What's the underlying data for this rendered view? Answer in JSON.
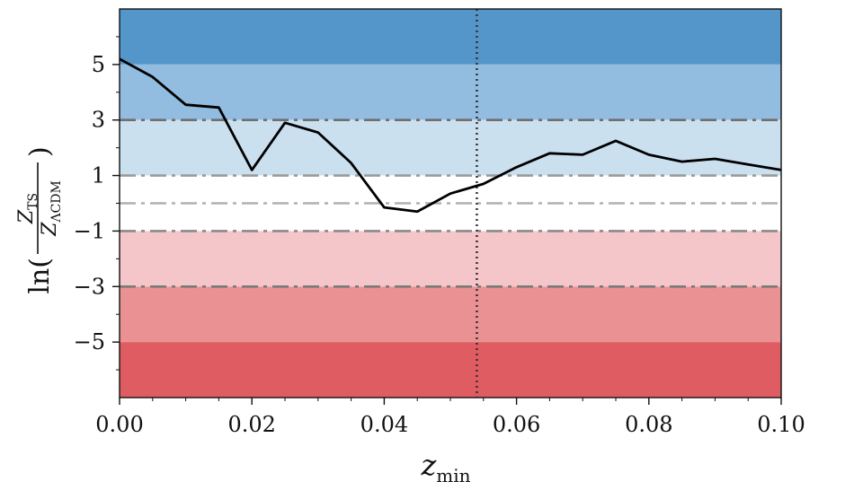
{
  "chart_data": {
    "type": "line",
    "xlabel": {
      "main": "z",
      "sub": "min"
    },
    "ylabel": {
      "prefix": "ln(",
      "num_main": "Z",
      "num_sub": "TS",
      "den_main": "Z",
      "den_sub": "ΛCDM",
      "suffix": ")"
    },
    "xlim": [
      0.0,
      0.1
    ],
    "ylim": [
      -7,
      7
    ],
    "xticks": [
      0.0,
      0.02,
      0.04,
      0.06,
      0.08,
      0.1
    ],
    "xtick_labels": [
      "0.00",
      "0.02",
      "0.04",
      "0.06",
      "0.08",
      "0.10"
    ],
    "yticks": [
      5,
      3,
      1,
      -1,
      -3,
      -5
    ],
    "ytick_labels": [
      "5",
      "3",
      "1",
      "−1",
      "−3",
      "−5"
    ],
    "bands": [
      {
        "from": 5,
        "to": 7,
        "color": "#5496c9"
      },
      {
        "from": 3,
        "to": 5,
        "color": "#92bde0"
      },
      {
        "from": 1,
        "to": 3,
        "color": "#cbe0ef"
      },
      {
        "from": -1,
        "to": 1,
        "color": "#ffffff"
      },
      {
        "from": -3,
        "to": -1,
        "color": "#f4c5c9"
      },
      {
        "from": -5,
        "to": -3,
        "color": "#ea9293"
      },
      {
        "from": -7,
        "to": -5,
        "color": "#e05c63"
      }
    ],
    "reference_lines": [
      {
        "y": 3,
        "style": "dashdot",
        "color": "#6f6f6f"
      },
      {
        "y": 1,
        "style": "dashdot",
        "color": "#9a9a9a"
      },
      {
        "y": 0,
        "style": "dashdot",
        "color": "#b0b0b0"
      },
      {
        "y": -1,
        "style": "dashdot",
        "color": "#8a8a8a"
      },
      {
        "y": -3,
        "style": "dashdot",
        "color": "#7a7a7a"
      }
    ],
    "vline": {
      "x": 0.054,
      "style": "dotted",
      "color": "#333333"
    },
    "series": [
      {
        "color": "#000000",
        "x": [
          0.0,
          0.005,
          0.01,
          0.015,
          0.02,
          0.025,
          0.03,
          0.035,
          0.04,
          0.045,
          0.05,
          0.055,
          0.06,
          0.065,
          0.07,
          0.075,
          0.08,
          0.085,
          0.09,
          0.095,
          0.1
        ],
        "y": [
          5.2,
          4.55,
          3.55,
          3.45,
          1.2,
          2.9,
          2.55,
          1.45,
          -0.15,
          -0.3,
          0.35,
          0.7,
          1.3,
          1.8,
          1.75,
          2.25,
          1.75,
          1.5,
          1.6,
          1.4,
          1.2
        ]
      }
    ]
  }
}
